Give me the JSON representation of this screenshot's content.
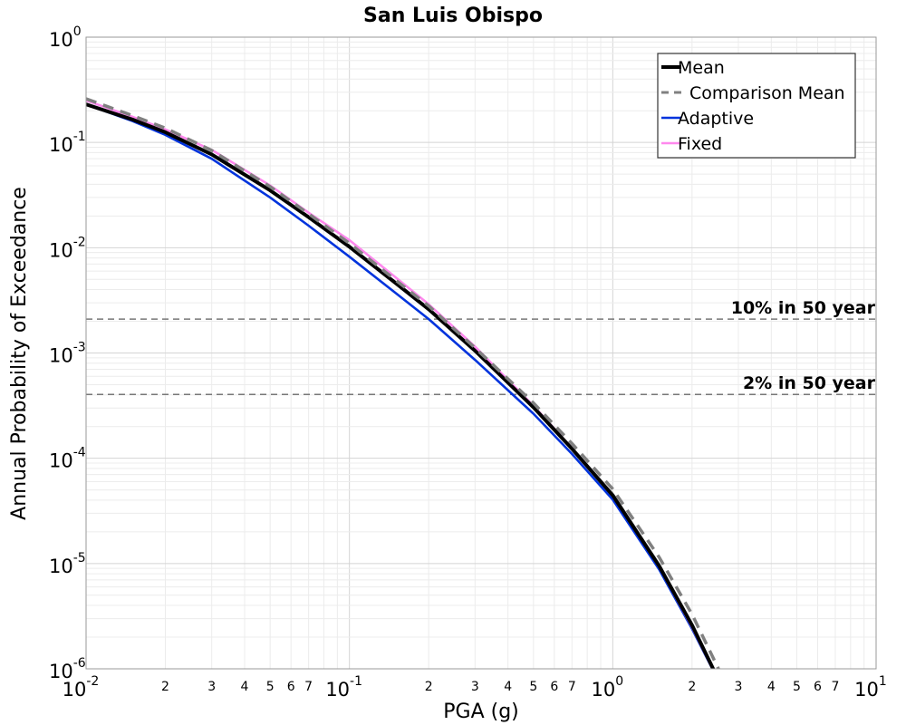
{
  "chart_data": {
    "type": "line",
    "title": "San Luis Obispo",
    "xlabel": "PGA (g)",
    "ylabel": "Annual Probability of Exceedance",
    "x_scale": "log",
    "y_scale": "log",
    "xlim": [
      0.01,
      10
    ],
    "ylim": [
      1e-06,
      1
    ],
    "grid": true,
    "legend_position": "top-right",
    "x_major_ticks": [
      {
        "base": "10",
        "exp": "-2",
        "value": 0.01
      },
      {
        "base": "10",
        "exp": "-1",
        "value": 0.1
      },
      {
        "base": "10",
        "exp": "0",
        "value": 1
      },
      {
        "base": "10",
        "exp": "1",
        "value": 10
      }
    ],
    "x_minor_labels": [
      {
        "label": "2",
        "value": 0.02
      },
      {
        "label": "3",
        "value": 0.03
      },
      {
        "label": "4",
        "value": 0.04
      },
      {
        "label": "5",
        "value": 0.05
      },
      {
        "label": "6",
        "value": 0.06
      },
      {
        "label": "7",
        "value": 0.07
      },
      {
        "label": "2",
        "value": 0.2
      },
      {
        "label": "3",
        "value": 0.3
      },
      {
        "label": "4",
        "value": 0.4
      },
      {
        "label": "5",
        "value": 0.5
      },
      {
        "label": "6",
        "value": 0.6
      },
      {
        "label": "7",
        "value": 0.7
      },
      {
        "label": "2",
        "value": 2
      },
      {
        "label": "3",
        "value": 3
      },
      {
        "label": "4",
        "value": 4
      },
      {
        "label": "5",
        "value": 5
      },
      {
        "label": "6",
        "value": 6
      },
      {
        "label": "7",
        "value": 7
      }
    ],
    "y_major_ticks": [
      {
        "base": "10",
        "exp": "0",
        "value": 1
      },
      {
        "base": "10",
        "exp": "-1",
        "value": 0.1
      },
      {
        "base": "10",
        "exp": "-2",
        "value": 0.01
      },
      {
        "base": "10",
        "exp": "-3",
        "value": 0.001
      },
      {
        "base": "10",
        "exp": "-4",
        "value": 0.0001
      },
      {
        "base": "10",
        "exp": "-5",
        "value": 1e-05
      },
      {
        "base": "10",
        "exp": "-6",
        "value": 1e-06
      }
    ],
    "reference_lines": [
      {
        "label": "10% in 50 year",
        "y": 0.0021
      },
      {
        "label": "2% in 50 year",
        "y": 0.000404
      }
    ],
    "series": [
      {
        "name": "Mean",
        "color": "#000000",
        "style": "solid",
        "x": [
          0.01,
          0.015,
          0.02,
          0.03,
          0.05,
          0.07,
          0.1,
          0.15,
          0.2,
          0.3,
          0.5,
          0.7,
          1.0,
          1.5,
          2.0,
          2.5
        ],
        "y": [
          0.23,
          0.165,
          0.125,
          0.077,
          0.035,
          0.0195,
          0.0102,
          0.0046,
          0.0026,
          0.00105,
          0.000305,
          0.000123,
          4.45e-05,
          9.5e-06,
          2.6e-06,
          8.2e-07
        ]
      },
      {
        "name": "Comparison Mean",
        "color": "#808080",
        "style": "dashed",
        "x": [
          0.01,
          0.015,
          0.02,
          0.03,
          0.05,
          0.07,
          0.1,
          0.15,
          0.2,
          0.3,
          0.5,
          0.7,
          1.0,
          1.5,
          2.0,
          2.6
        ],
        "y": [
          0.26,
          0.18,
          0.137,
          0.084,
          0.038,
          0.021,
          0.011,
          0.0049,
          0.0028,
          0.00112,
          0.000335,
          0.000138,
          5.1e-05,
          1.15e-05,
          3.3e-06,
          8.5e-07
        ]
      },
      {
        "name": "Adaptive",
        "color": "#0033dd",
        "style": "solid",
        "x": [
          0.01,
          0.015,
          0.02,
          0.03,
          0.05,
          0.07,
          0.1,
          0.15,
          0.2,
          0.3,
          0.5,
          0.7,
          1.0,
          1.5,
          2.0,
          2.5
        ],
        "y": [
          0.23,
          0.16,
          0.118,
          0.07,
          0.03,
          0.0162,
          0.0082,
          0.0037,
          0.0021,
          0.00086,
          0.000265,
          0.00011,
          4.05e-05,
          8.8e-06,
          2.4e-06,
          8e-07
        ]
      },
      {
        "name": "Fixed",
        "color": "#ff88ee",
        "style": "solid",
        "x": [
          0.01,
          0.015,
          0.02,
          0.03,
          0.05,
          0.07,
          0.1,
          0.15,
          0.2,
          0.3,
          0.5,
          0.7,
          1.0,
          1.5,
          2.0,
          2.5
        ],
        "y": [
          0.25,
          0.175,
          0.133,
          0.085,
          0.039,
          0.0215,
          0.0118,
          0.0052,
          0.0029,
          0.00115,
          0.000315,
          0.000125,
          4.45e-05,
          9.3e-06,
          2.5e-06,
          8e-07
        ]
      }
    ]
  }
}
